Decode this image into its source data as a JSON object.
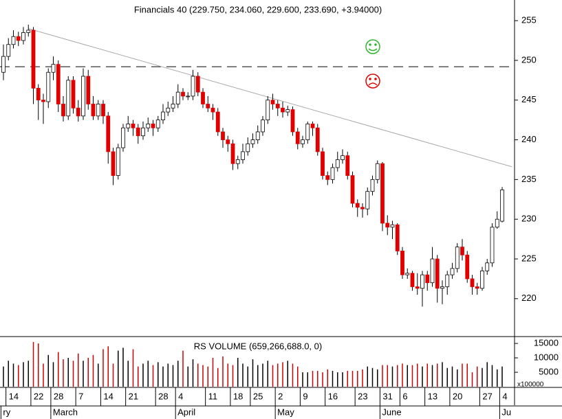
{
  "chart_data": {
    "type": "candlestick",
    "title": "Financials 40 (229.750, 234.060, 229.600, 233.690, +3.94000)",
    "categories": [
      null,
      "14",
      null,
      null,
      null,
      null,
      "22",
      null,
      null,
      null,
      "28",
      null,
      null,
      null,
      null,
      "7",
      null,
      null,
      null,
      null,
      "14",
      null,
      null,
      null,
      null,
      "21",
      null,
      null,
      null,
      null,
      null,
      "28",
      null,
      null,
      null,
      "4",
      null,
      null,
      null,
      null,
      null,
      "11",
      null,
      null,
      null,
      null,
      "18",
      null,
      null,
      null,
      "25",
      null,
      null,
      null,
      null,
      "2",
      null,
      null,
      null,
      null,
      "9",
      null,
      null,
      null,
      null,
      "16",
      null,
      null,
      null,
      null,
      null,
      "23",
      null,
      null,
      null,
      null,
      "31",
      null,
      null,
      null,
      "6",
      null,
      null,
      null,
      null,
      "13",
      null,
      null,
      null,
      null,
      "20",
      null,
      null,
      null,
      null,
      null,
      "27",
      null,
      null,
      null,
      "4"
    ],
    "months": [
      "ry",
      null,
      null,
      null,
      null,
      null,
      null,
      null,
      null,
      null,
      "March",
      null,
      null,
      null,
      null,
      null,
      null,
      null,
      null,
      null,
      null,
      null,
      null,
      null,
      null,
      null,
      null,
      null,
      null,
      null,
      null,
      null,
      null,
      null,
      null,
      "April",
      null,
      null,
      null,
      null,
      null,
      null,
      null,
      null,
      null,
      null,
      null,
      null,
      null,
      null,
      null,
      null,
      null,
      null,
      null,
      "May",
      null,
      null,
      null,
      null,
      null,
      null,
      null,
      null,
      null,
      null,
      null,
      null,
      null,
      null,
      null,
      null,
      null,
      null,
      null,
      null,
      "June",
      null,
      null,
      null,
      null,
      null,
      null,
      null,
      null,
      null,
      null,
      null,
      null,
      null,
      null,
      null,
      null,
      null,
      null,
      null,
      null,
      null,
      null,
      null,
      "Ju"
    ],
    "open": [
      248.5,
      250.5,
      252,
      253,
      252.5,
      253.5,
      253.8,
      246.5,
      245,
      244.8,
      248.5,
      249.5,
      244.5,
      243,
      247.5,
      244,
      243,
      248,
      244.5,
      243,
      244.5,
      243,
      238.5,
      235.5,
      239,
      241.5,
      242,
      241.5,
      240.5,
      241.5,
      242,
      241.5,
      242.5,
      243.5,
      244,
      244.5,
      246,
      245.5,
      245.5,
      248,
      246,
      244.5,
      244,
      243.5,
      241,
      240,
      239.5,
      237,
      237.5,
      238.5,
      239.5,
      240,
      241,
      242.5,
      245,
      244.5,
      244,
      243.5,
      243.8,
      241,
      239.5,
      240,
      242,
      241.5,
      238.5,
      235.5,
      235,
      236.5,
      237.5,
      238,
      235.5,
      232,
      231.5,
      231.3,
      233.5,
      235,
      237,
      229.5,
      229,
      229.3,
      226,
      223,
      223.2,
      221.5,
      221.3,
      223,
      222,
      225,
      221.3,
      221.5,
      223,
      223.8,
      226.5,
      225.5,
      222.5,
      221.5,
      221.3,
      223.5,
      224.5,
      229,
      229.75
    ],
    "high": [
      252,
      252.8,
      253.8,
      253.6,
      254.2,
      254.5,
      254.2,
      247,
      245.8,
      249,
      250.5,
      250,
      245.5,
      248,
      248,
      245,
      249,
      248.8,
      245.5,
      245,
      245,
      243.5,
      239,
      239.5,
      242,
      243,
      242.5,
      242,
      242.3,
      242.8,
      242.5,
      243,
      244.5,
      244.8,
      245.5,
      247,
      246.5,
      246,
      248.8,
      248.5,
      246.5,
      245.5,
      244.5,
      244,
      241.5,
      240.5,
      240,
      238,
      239.5,
      240.3,
      240.8,
      241.8,
      243,
      245.5,
      245.8,
      245,
      244.8,
      244.3,
      244.2,
      241.5,
      240.5,
      242.3,
      242.3,
      242,
      239,
      236,
      237,
      238.5,
      238.8,
      238.5,
      236,
      232.5,
      232,
      234,
      235.5,
      237.4,
      237.2,
      230.5,
      229.8,
      229.5,
      226.5,
      223.8,
      223.5,
      223.2,
      223.5,
      223.5,
      226.5,
      225.5,
      222.3,
      223.5,
      224.5,
      227,
      227.5,
      226,
      223,
      222,
      224,
      225,
      229.5,
      231,
      234.06
    ],
    "low": [
      247.5,
      250,
      251.5,
      251.8,
      252,
      253,
      244.5,
      242.5,
      242,
      244,
      247.5,
      243.5,
      242.3,
      242.5,
      243.3,
      242.3,
      242.5,
      243.8,
      242.5,
      242.5,
      242,
      237,
      234.3,
      235,
      238.5,
      241,
      240.5,
      239.5,
      240,
      241,
      240.5,
      241,
      242,
      243,
      243.5,
      244,
      245,
      245,
      245,
      245.5,
      244,
      243.5,
      242.5,
      240.5,
      239,
      238.5,
      236.2,
      236.3,
      237,
      238,
      239,
      239.5,
      240.5,
      242,
      243.8,
      243,
      242.8,
      243,
      240.5,
      238.8,
      239,
      239.5,
      240.5,
      238,
      235,
      234.3,
      234.5,
      236,
      237,
      235,
      231.5,
      230.3,
      230.2,
      230.5,
      233,
      234.5,
      228.5,
      228,
      227.5,
      225.5,
      222.5,
      222.5,
      221,
      220.5,
      219,
      221,
      221.5,
      219.5,
      219.3,
      220.5,
      222.5,
      223.3,
      224.8,
      222,
      220.5,
      220.5,
      221,
      223,
      224,
      228.8,
      229.6
    ],
    "close": [
      250.5,
      252,
      253,
      252.5,
      253.5,
      253.8,
      246.5,
      245,
      244.8,
      248.5,
      249.5,
      244.5,
      243,
      247.5,
      244,
      243,
      248,
      244.5,
      243,
      244.5,
      243,
      238.5,
      235.5,
      239,
      241.5,
      242,
      241.5,
      240.5,
      241.5,
      242,
      241.5,
      242.5,
      243.5,
      244,
      244.5,
      246,
      245.5,
      245.5,
      248,
      246,
      244.5,
      244,
      243.5,
      241,
      240,
      239.5,
      237,
      237.5,
      238.5,
      239.5,
      240,
      241,
      242.5,
      245,
      244.5,
      244,
      243.5,
      243.8,
      241,
      239.5,
      240,
      242,
      241.5,
      238.5,
      235.5,
      235,
      236.5,
      237.5,
      238,
      235.5,
      232,
      231.5,
      231.3,
      233.5,
      235,
      237,
      229.5,
      229,
      229.3,
      226,
      223,
      223.2,
      221.5,
      221.3,
      223,
      222,
      225,
      221.3,
      221.5,
      223,
      223.8,
      226.5,
      225.5,
      222.5,
      221.5,
      221.3,
      223.5,
      224.5,
      229,
      230,
      233.69
    ],
    "up_color": "#ffffff",
    "down_color": "#e00000",
    "ylim": [
      215.4,
      257.6
    ],
    "yticks": [
      220,
      225,
      230,
      235,
      240,
      245,
      250,
      255
    ],
    "reference_line": 249.2,
    "trendline": {
      "start_index": 5,
      "start": 254,
      "end_index": 102,
      "end": 236.6
    },
    "volume": {
      "title": "RS VOLUME (659,266,688.0, 0)",
      "multiplier_label": "x100000",
      "values": [
        7000,
        9000,
        8000,
        7500,
        8500,
        9000,
        15500,
        15000,
        8000,
        11000,
        8500,
        12000,
        9500,
        10000,
        9000,
        11500,
        9000,
        10000,
        11000,
        8000,
        13000,
        14000,
        8000,
        12500,
        13500,
        9000,
        13000,
        7000,
        8000,
        9000,
        7500,
        8500,
        7000,
        8000,
        7500,
        9000,
        12500,
        7000,
        9500,
        8000,
        7500,
        7000,
        10000,
        6500,
        10500,
        8000,
        7500,
        10000,
        8000,
        7000,
        9500,
        7500,
        8000,
        9000,
        7500,
        8000,
        8500,
        9000,
        8000,
        7000,
        5000,
        5000,
        5500,
        5500,
        5000,
        6000,
        5500,
        5000,
        5000,
        5500,
        5500,
        5500,
        6000,
        7000,
        6500,
        6000,
        7500,
        7500,
        7000,
        7500,
        8000,
        7500,
        7500,
        8000,
        7000,
        8000,
        7500,
        8000,
        8500,
        6500,
        7000,
        6000,
        8000,
        8000,
        5000,
        7000,
        6500,
        8500,
        7500,
        6000,
        7000
      ],
      "up_color": "#000000",
      "down_color": "#cc0000",
      "ylim": [
        0,
        17380
      ],
      "yticks": [
        5000,
        10000,
        15000
      ]
    }
  }
}
